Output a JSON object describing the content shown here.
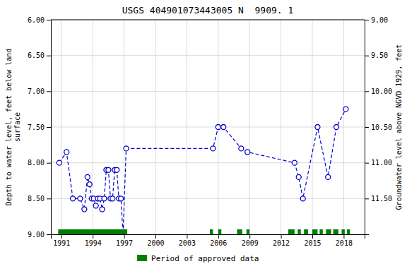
{
  "chart_data": {
    "type": "line",
    "title": "USGS 404901073443005 N  9909. 1",
    "ylabel": "Depth to water level, feet below land\nsurface",
    "y2label": "Groundwater level above NGVD 1929, feet",
    "xlim": [
      1990,
      2020
    ],
    "xticks": [
      1991,
      1994,
      1997,
      2000,
      2003,
      2006,
      2009,
      2012,
      2015,
      2018
    ],
    "ylim": [
      9.0,
      6.0
    ],
    "yticks": [
      {
        "value": 6.0,
        "label": "6.00"
      },
      {
        "value": 6.5,
        "label": "6.50"
      },
      {
        "value": 7.0,
        "label": "7.00"
      },
      {
        "value": 7.5,
        "label": "7.50"
      },
      {
        "value": 8.0,
        "label": "8.00"
      },
      {
        "value": 8.5,
        "label": "8.50"
      },
      {
        "value": 9.0,
        "label": "9.00"
      }
    ],
    "y2lim": [
      12.0,
      9.0
    ],
    "y2ticks": [
      {
        "value": 9.0,
        "label": "9.00"
      },
      {
        "value": 9.5,
        "label": "9.50"
      },
      {
        "value": 10.0,
        "label": "10.00"
      },
      {
        "value": 10.5,
        "label": "10.50"
      },
      {
        "value": 11.0,
        "label": "11.00"
      },
      {
        "value": 11.5,
        "label": "11.50"
      }
    ],
    "grid": true,
    "legend": "bottom",
    "x": [
      1990.8,
      1991.5,
      1992.1,
      1992.8,
      1993.2,
      1993.5,
      1993.7,
      1993.9,
      1994.1,
      1994.3,
      1994.5,
      1994.7,
      1994.9,
      1995.1,
      1995.3,
      1995.5,
      1995.7,
      1995.9,
      1996.1,
      1996.3,
      1996.5,
      1996.7,
      1996.9,
      1997.2,
      2005.5,
      2006.0,
      2006.5,
      2008.2,
      2008.8,
      2013.3,
      2013.7,
      2014.1,
      2015.5,
      2016.5,
      2017.3,
      2018.2
    ],
    "series": [
      {
        "values": [
          8.0,
          7.85,
          8.5,
          8.5,
          8.65,
          8.2,
          8.3,
          8.5,
          8.5,
          8.6,
          8.5,
          8.5,
          8.65,
          8.5,
          8.1,
          8.1,
          8.5,
          8.5,
          8.1,
          8.1,
          8.5,
          8.5,
          9.0,
          7.8,
          7.8,
          7.5,
          7.5,
          7.8,
          7.85,
          8.0,
          8.2,
          8.5,
          7.5,
          8.2,
          7.5,
          7.25
        ],
        "color": "#0000cc",
        "line_style": "dashed",
        "marker": "open_circle"
      },
      {
        "name": "Period of approved data",
        "type": "range",
        "color": "#008000",
        "y": 9.0,
        "ranges": [
          [
            1990.7,
            1997.3
          ],
          [
            2005.2,
            2005.5
          ],
          [
            2006.0,
            2006.3
          ],
          [
            2007.8,
            2008.3
          ],
          [
            2008.7,
            2009.0
          ],
          [
            2012.7,
            2013.3
          ],
          [
            2013.6,
            2013.9
          ],
          [
            2014.2,
            2014.6
          ],
          [
            2015.0,
            2015.5
          ],
          [
            2015.7,
            2016.0
          ],
          [
            2016.3,
            2016.8
          ],
          [
            2017.0,
            2017.5
          ],
          [
            2017.8,
            2018.1
          ],
          [
            2018.3,
            2018.6
          ]
        ]
      }
    ]
  }
}
